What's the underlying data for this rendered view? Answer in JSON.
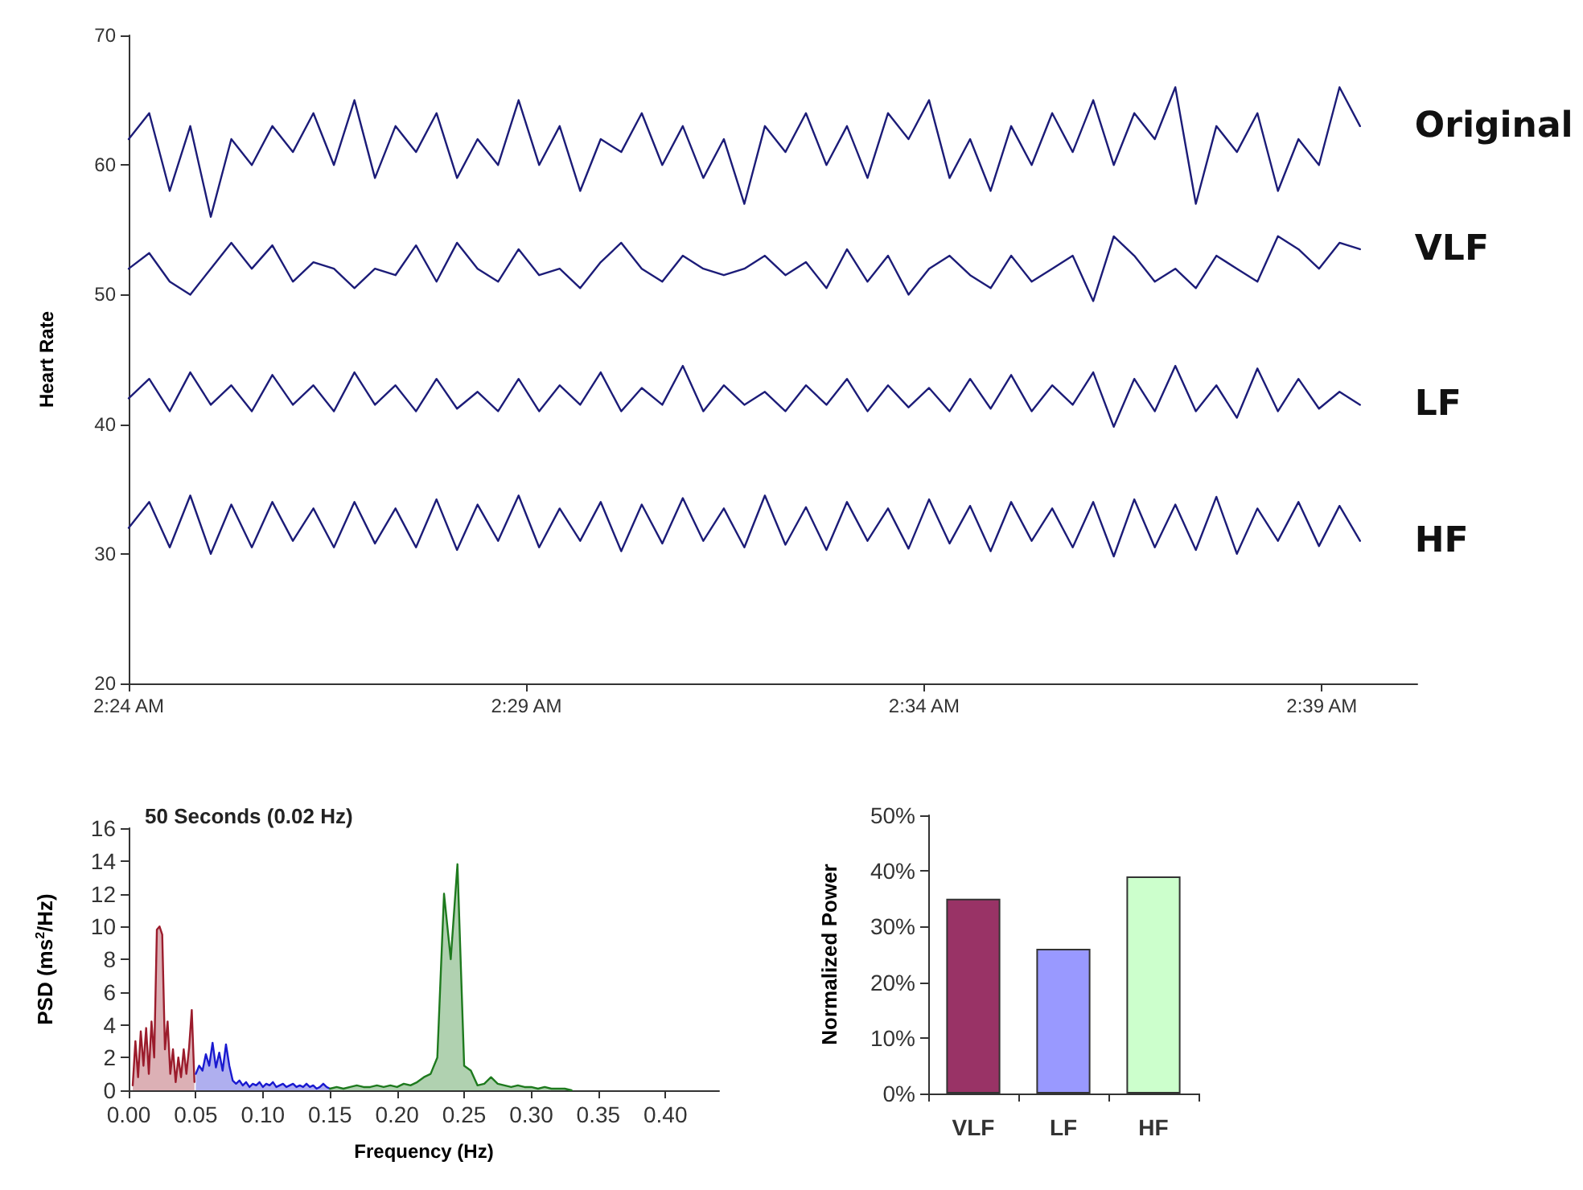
{
  "chart_data": [
    {
      "type": "line",
      "ylabel": "Heart Rate",
      "xlim": [
        2.4,
        2.67
      ],
      "ylim": [
        20,
        70
      ],
      "yticks": [
        20,
        30,
        40,
        50,
        60,
        70
      ],
      "xticks": [
        {
          "value": 2.4,
          "label": "2:24 AM"
        },
        {
          "value": 2.483333,
          "label": "2:29 AM"
        },
        {
          "value": 2.566667,
          "label": "2:34 AM"
        },
        {
          "value": 2.65,
          "label": "2:39 AM"
        }
      ],
      "x": [
        2.4,
        2.4043,
        2.4086,
        2.4129,
        2.4172,
        2.4215,
        2.4258,
        2.4301,
        2.4344,
        2.4387,
        2.443,
        2.4473,
        2.4516,
        2.4559,
        2.4602,
        2.4645,
        2.4688,
        2.4731,
        2.4774,
        2.4817,
        2.486,
        2.4903,
        2.4946,
        2.4989,
        2.5032,
        2.5075,
        2.5118,
        2.5161,
        2.5204,
        2.5247,
        2.529,
        2.5333,
        2.5376,
        2.5419,
        2.5462,
        2.5505,
        2.5548,
        2.5591,
        2.5634,
        2.5677,
        2.572,
        2.5763,
        2.5806,
        2.5849,
        2.5892,
        2.5935,
        2.5978,
        2.6021,
        2.6064,
        2.6107,
        2.615,
        2.6193,
        2.6236,
        2.6279,
        2.6322,
        2.6365,
        2.6408,
        2.6451,
        2.6494,
        2.6537,
        2.658
      ],
      "series": [
        {
          "name": "Original",
          "color": "#1c1c78",
          "values": [
            62,
            64,
            58,
            63,
            56,
            62,
            60,
            63,
            61,
            64,
            60,
            65,
            59,
            63,
            61,
            64,
            59,
            62,
            60,
            65,
            60,
            63,
            58,
            62,
            61,
            64,
            60,
            63,
            59,
            62,
            57,
            63,
            61,
            64,
            60,
            63,
            59,
            64,
            62,
            65,
            59,
            62,
            58,
            63,
            60,
            64,
            61,
            65,
            60,
            64,
            62,
            66,
            57,
            63,
            61,
            64,
            58,
            62,
            60,
            66,
            63
          ]
        },
        {
          "name": "VLF",
          "color": "#1c1c78",
          "values": [
            52,
            53.2,
            51,
            50,
            52,
            54,
            52,
            53.8,
            51,
            52.5,
            52,
            50.5,
            52,
            51.5,
            53.8,
            51,
            54,
            52,
            51,
            53.5,
            51.5,
            52,
            50.5,
            52.5,
            54,
            52,
            51,
            53,
            52,
            51.5,
            52,
            53,
            51.5,
            52.5,
            50.5,
            53.5,
            51,
            53,
            50,
            52,
            53,
            51.5,
            50.5,
            53,
            51,
            52,
            53,
            49.5,
            54.5,
            53,
            51,
            52,
            50.5,
            53,
            52,
            51,
            54.5,
            53.5,
            52,
            54,
            53.5
          ]
        },
        {
          "name": "LF",
          "color": "#1c1c78",
          "values": [
            42,
            43.5,
            41,
            44,
            41.5,
            43,
            41,
            43.8,
            41.5,
            43,
            41,
            44,
            41.5,
            43,
            41,
            43.5,
            41.2,
            42.5,
            41,
            43.5,
            41,
            43,
            41.5,
            44,
            41,
            42.8,
            41.5,
            44.5,
            41,
            43,
            41.5,
            42.5,
            41,
            43,
            41.5,
            43.5,
            41,
            43,
            41.3,
            42.8,
            41,
            43.5,
            41.2,
            43.8,
            41,
            43,
            41.5,
            44,
            39.8,
            43.5,
            41,
            44.5,
            41,
            43,
            40.5,
            44.3,
            41,
            43.5,
            41.2,
            42.5,
            41.5
          ]
        },
        {
          "name": "HF",
          "color": "#1c1c78",
          "values": [
            32,
            34,
            30.5,
            34.5,
            30,
            33.8,
            30.5,
            34,
            31,
            33.5,
            30.5,
            34,
            30.8,
            33.5,
            30.5,
            34.2,
            30.3,
            33.8,
            31,
            34.5,
            30.5,
            33.5,
            31,
            34,
            30.2,
            33.8,
            30.8,
            34.3,
            31,
            33.5,
            30.5,
            34.5,
            30.7,
            33.6,
            30.3,
            34,
            31,
            33.5,
            30.4,
            34.2,
            30.8,
            33.7,
            30.2,
            34,
            31,
            33.5,
            30.5,
            34,
            29.8,
            34.2,
            30.5,
            33.8,
            30.3,
            34.4,
            30,
            33.5,
            31,
            34,
            30.6,
            33.7,
            31
          ]
        }
      ]
    },
    {
      "type": "area",
      "xlabel": "Frequency (Hz)",
      "ylabel": "PSD (ms$^{2}$/Hz)",
      "annotations": [
        "50 Seconds (0.02 Hz)"
      ],
      "xlim": [
        0,
        0.44
      ],
      "ylim": [
        0,
        16
      ],
      "yticks": [
        0,
        2,
        4,
        6,
        8,
        10,
        12,
        14,
        16
      ],
      "xticks": [
        {
          "value": 0,
          "label": "0.00"
        },
        {
          "value": 0.05,
          "label": "0.05"
        },
        {
          "value": 0.1,
          "label": "0.10"
        },
        {
          "value": 0.15,
          "label": "0.15"
        },
        {
          "value": 0.2,
          "label": "0.20"
        },
        {
          "value": 0.25,
          "label": "0.25"
        },
        {
          "value": 0.3,
          "label": "0.30"
        },
        {
          "value": 0.35,
          "label": "0.35"
        },
        {
          "value": 0.4,
          "label": "0.40"
        }
      ],
      "series": [
        {
          "color": "#9b1c2c",
          "x": [
            0.003,
            0.005,
            0.007,
            0.009,
            0.011,
            0.013,
            0.015,
            0.017,
            0.019,
            0.021,
            0.023,
            0.025,
            0.027,
            0.029,
            0.031,
            0.033,
            0.035,
            0.037,
            0.039,
            0.041,
            0.043,
            0.045,
            0.047,
            0.049
          ],
          "values": [
            0.3,
            3,
            0.8,
            3.6,
            1.5,
            3.8,
            1,
            4.2,
            2,
            9.8,
            10,
            9.5,
            2.5,
            4.2,
            1,
            2.5,
            0.5,
            2,
            0.8,
            2.5,
            1,
            2.6,
            4.9,
            0.5
          ]
        },
        {
          "color": "#1a1ad0",
          "x": [
            0.05,
            0.0525,
            0.055,
            0.0575,
            0.06,
            0.0625,
            0.065,
            0.0675,
            0.07,
            0.0725,
            0.075,
            0.0775,
            0.08,
            0.0825,
            0.085,
            0.0875,
            0.09,
            0.0925,
            0.095,
            0.0975,
            0.1,
            0.1025,
            0.105,
            0.1075,
            0.11,
            0.1125,
            0.115,
            0.1175,
            0.12,
            0.1225,
            0.125,
            0.1275,
            0.13,
            0.1325,
            0.135,
            0.1375,
            0.14,
            0.1425,
            0.145,
            0.1475,
            0.15
          ],
          "values": [
            1,
            1.5,
            1.2,
            2.2,
            1.5,
            2.9,
            1.4,
            2.3,
            1.2,
            2.8,
            1.5,
            0.6,
            0.4,
            0.6,
            0.3,
            0.5,
            0.2,
            0.4,
            0.3,
            0.5,
            0.2,
            0.4,
            0.3,
            0.5,
            0.2,
            0.3,
            0.4,
            0.2,
            0.3,
            0.4,
            0.2,
            0.3,
            0.2,
            0.4,
            0.2,
            0.3,
            0.1,
            0.2,
            0.4,
            0.2,
            0.1
          ]
        },
        {
          "color": "#1e7a1e",
          "x": [
            0.15,
            0.155,
            0.16,
            0.165,
            0.17,
            0.175,
            0.18,
            0.185,
            0.19,
            0.195,
            0.2,
            0.205,
            0.21,
            0.215,
            0.22,
            0.225,
            0.23,
            0.235,
            0.24,
            0.245,
            0.25,
            0.255,
            0.26,
            0.265,
            0.27,
            0.275,
            0.28,
            0.285,
            0.29,
            0.295,
            0.3,
            0.305,
            0.31,
            0.315,
            0.32,
            0.325,
            0.33
          ],
          "values": [
            0.1,
            0.2,
            0.1,
            0.2,
            0.3,
            0.2,
            0.2,
            0.3,
            0.2,
            0.3,
            0.2,
            0.4,
            0.3,
            0.5,
            0.8,
            1,
            2,
            12,
            8,
            13.8,
            1.5,
            1.2,
            0.3,
            0.4,
            0.8,
            0.4,
            0.3,
            0.2,
            0.3,
            0.2,
            0.2,
            0.1,
            0.2,
            0.1,
            0.1,
            0.1,
            0
          ]
        }
      ]
    },
    {
      "type": "bar",
      "ylabel": "Normalized Power",
      "categories": [
        "VLF",
        "LF",
        "HF"
      ],
      "values": [
        35,
        26,
        39
      ],
      "colors": [
        "#993366",
        "#9999ff",
        "#ccffcc"
      ],
      "ylim": [
        0,
        50
      ],
      "yticks": [
        {
          "value": 0,
          "label": "0%"
        },
        {
          "value": 10,
          "label": "10%"
        },
        {
          "value": 20,
          "label": "20%"
        },
        {
          "value": 30,
          "label": "30%"
        },
        {
          "value": 40,
          "label": "40%"
        },
        {
          "value": 50,
          "label": "50%"
        }
      ]
    }
  ]
}
